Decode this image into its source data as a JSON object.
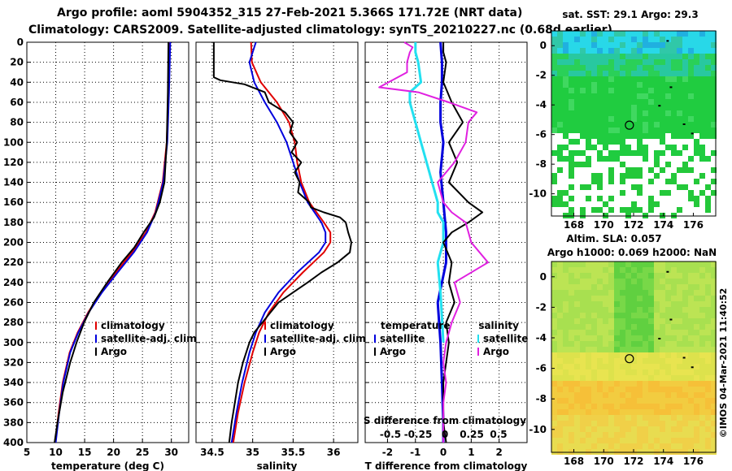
{
  "titles": {
    "line1": "Argo profile: aoml 5904352_315 27-Feb-2021 5.366S 171.72E (NRT data)",
    "line2": "Climatology: CARS2009. Satellite-adjusted climatology: synTS_20210227.nc (0.68d earlier)"
  },
  "colors": {
    "climatology": "#e00000",
    "satellite": "#0000dd",
    "argo": "#000000",
    "sat_salinity": "#22e0f0",
    "argo_salinity": "#e020e0"
  },
  "chart_data": [
    {
      "type": "line",
      "id": "temperature",
      "xlabel": "temperature (deg C)",
      "ylabel": "",
      "xlim": [
        5,
        33
      ],
      "ylim": [
        400,
        0
      ],
      "xticks": [
        5,
        10,
        15,
        20,
        25,
        30
      ],
      "yticks": [
        0,
        20,
        40,
        60,
        80,
        100,
        120,
        140,
        160,
        180,
        200,
        220,
        240,
        260,
        280,
        300,
        320,
        340,
        360,
        380,
        400
      ],
      "legend": [
        "climatology",
        "satellite-adj. clim.",
        "Argo"
      ],
      "series": [
        {
          "name": "climatology",
          "pressure": [
            0,
            50,
            100,
            140,
            170,
            190,
            210,
            230,
            250,
            270,
            290,
            310,
            340,
            370,
            400
          ],
          "values": [
            29.6,
            29.5,
            29.2,
            28.5,
            27.2,
            25.6,
            23.2,
            20.4,
            17.8,
            15.6,
            13.8,
            12.4,
            11.2,
            10.5,
            9.9
          ]
        },
        {
          "name": "satellite-adj. clim.",
          "pressure": [
            0,
            50,
            100,
            140,
            170,
            190,
            210,
            230,
            250,
            270,
            290,
            310,
            340,
            370,
            400
          ],
          "values": [
            29.8,
            29.6,
            29.3,
            28.6,
            27.3,
            25.8,
            23.5,
            20.7,
            18.0,
            15.7,
            13.9,
            12.5,
            11.3,
            10.6,
            10.0
          ]
        },
        {
          "name": "Argo",
          "pressure": [
            0,
            50,
            100,
            140,
            160,
            175,
            190,
            205,
            220,
            240,
            260,
            280,
            300,
            320,
            350,
            380,
            400
          ],
          "values": [
            29.5,
            29.4,
            29.2,
            28.8,
            28.0,
            27.0,
            25.2,
            23.6,
            21.4,
            18.9,
            16.6,
            14.9,
            13.6,
            12.5,
            11.2,
            10.3,
            9.8
          ]
        }
      ]
    },
    {
      "type": "line",
      "id": "salinity",
      "xlabel": "salinity",
      "ylabel": "",
      "xlim": [
        34.3,
        36.3
      ],
      "ylim": [
        400,
        0
      ],
      "xticks": [
        34.5,
        35,
        35.5,
        36
      ],
      "legend": [
        "climatology",
        "satellite-adj. clim.",
        "Argo"
      ],
      "series": [
        {
          "name": "climatology",
          "pressure": [
            0,
            20,
            40,
            60,
            80,
            100,
            120,
            140,
            160,
            180,
            190,
            200,
            210,
            230,
            250,
            270,
            290,
            310,
            340,
            370,
            400
          ],
          "values": [
            34.98,
            34.99,
            35.1,
            35.3,
            35.45,
            35.52,
            35.55,
            35.6,
            35.7,
            35.88,
            35.96,
            35.96,
            35.88,
            35.62,
            35.38,
            35.2,
            35.08,
            35.0,
            34.9,
            34.82,
            34.76
          ]
        },
        {
          "name": "satellite-adj. clim.",
          "pressure": [
            0,
            20,
            40,
            60,
            80,
            100,
            120,
            140,
            160,
            180,
            190,
            200,
            210,
            230,
            250,
            270,
            290,
            310,
            340,
            370,
            400
          ],
          "values": [
            35.04,
            34.96,
            35.02,
            35.15,
            35.3,
            35.42,
            35.5,
            35.58,
            35.68,
            35.85,
            35.9,
            35.9,
            35.82,
            35.55,
            35.32,
            35.15,
            35.04,
            34.96,
            34.87,
            34.8,
            34.74
          ]
        },
        {
          "name": "Argo",
          "pressure": [
            0,
            35,
            38,
            42,
            50,
            60,
            70,
            80,
            90,
            100,
            110,
            120,
            130,
            140,
            150,
            160,
            165,
            170,
            175,
            180,
            190,
            200,
            210,
            220,
            230,
            240,
            250,
            260,
            270,
            280,
            290,
            300,
            320,
            340,
            360,
            380,
            400
          ],
          "values": [
            34.52,
            34.52,
            34.6,
            34.9,
            35.15,
            35.2,
            35.4,
            35.5,
            35.46,
            35.55,
            35.48,
            35.6,
            35.52,
            35.58,
            35.56,
            35.7,
            35.72,
            35.88,
            36.08,
            36.15,
            36.18,
            36.22,
            36.2,
            36.05,
            35.85,
            35.68,
            35.5,
            35.32,
            35.22,
            35.12,
            35.02,
            34.96,
            34.88,
            34.82,
            34.78,
            34.74,
            34.71
          ]
        }
      ]
    },
    {
      "type": "line",
      "id": "differences",
      "xlabel": "T difference from climatology",
      "xlabel_top": "S difference from climatology",
      "xlim": [
        -2.8,
        3.0
      ],
      "ylim": [
        400,
        0
      ],
      "xticks": [
        -2,
        -1,
        0,
        1,
        2
      ],
      "xticks_top": [
        -0.5,
        -0.25,
        0,
        0.25,
        0.5
      ],
      "legend_temperature_title": "temperature",
      "legend_salinity_title": "salinity",
      "legend_temperature": [
        "satellite",
        "Argo"
      ],
      "legend_salinity": [
        "satellite",
        "Argo"
      ],
      "series": [
        {
          "name": "T satellite",
          "pressure": [
            0,
            20,
            40,
            60,
            80,
            100,
            130,
            160,
            190,
            220,
            260,
            300,
            340,
            380,
            400
          ],
          "values": [
            -0.1,
            -0.05,
            -0.05,
            -0.1,
            -0.1,
            0.0,
            -0.1,
            0.0,
            0.1,
            0.1,
            -0.2,
            -0.1,
            -0.05,
            0.0,
            0.0
          ]
        },
        {
          "name": "S satellite (T-axis scaled)",
          "pressure": [
            0,
            10,
            20,
            40,
            50,
            60,
            80,
            100,
            120,
            140,
            160,
            170,
            180,
            200,
            220,
            250,
            300
          ],
          "values": [
            -1.0,
            -1.0,
            -0.9,
            -0.8,
            -1.2,
            -1.2,
            -1.0,
            -0.8,
            -0.6,
            -0.4,
            -0.2,
            -0.2,
            0.0,
            0.0,
            -0.2,
            -0.1,
            0.0
          ]
        },
        {
          "name": "T Argo",
          "pressure": [
            0,
            10,
            20,
            40,
            60,
            80,
            100,
            120,
            140,
            160,
            170,
            180,
            190,
            200,
            220,
            240,
            260,
            280,
            300,
            320,
            340,
            360,
            380,
            400
          ],
          "values": [
            0.0,
            0.0,
            0.1,
            0.0,
            0.3,
            0.7,
            0.2,
            0.5,
            0.2,
            0.9,
            1.4,
            0.9,
            0.3,
            0.0,
            0.3,
            0.2,
            0.4,
            0.1,
            0.2,
            0.1,
            0.0,
            0.0,
            0.0,
            0.1
          ]
        },
        {
          "name": "S Argo (T-axis scaled)",
          "pressure": [
            0,
            5,
            10,
            20,
            30,
            45,
            50,
            60,
            70,
            80,
            100,
            120,
            140,
            160,
            170,
            180,
            200,
            220,
            240,
            260,
            280,
            300,
            320,
            340,
            360,
            380,
            400
          ],
          "values": [
            -1.4,
            -1.1,
            -1.2,
            -1.3,
            -1.3,
            -2.3,
            -0.9,
            0.2,
            1.2,
            0.9,
            0.8,
            0.4,
            -0.2,
            0.0,
            0.3,
            0.8,
            1.0,
            1.6,
            0.4,
            0.6,
            0.3,
            0.1,
            0.0,
            0.1,
            0.0,
            0.0,
            0.0
          ]
        }
      ]
    },
    {
      "type": "heatmap",
      "id": "sst_map",
      "title": "sat. SST: 29.1 Argo: 29.3",
      "xticks": [
        168,
        170,
        172,
        174,
        176
      ],
      "yticks": [
        0,
        -2,
        -4,
        -6,
        -8,
        -10
      ],
      "xlim": [
        166.5,
        177.5
      ],
      "ylim": [
        -11.5,
        1
      ],
      "marker": {
        "lon": 171.72,
        "lat": -5.366
      }
    },
    {
      "type": "heatmap",
      "id": "sla_map",
      "title": "Altim. SLA: 0.057",
      "subtitle": "Argo h1000: 0.069 h2000: NaN",
      "xticks": [
        168,
        170,
        172,
        174,
        176
      ],
      "yticks": [
        0,
        -2,
        -4,
        -6,
        -8,
        -10
      ],
      "xlim": [
        166.5,
        177.5
      ],
      "ylim": [
        -11.5,
        1
      ],
      "marker": {
        "lon": 171.72,
        "lat": -5.366
      }
    }
  ],
  "stamp": "©IMOS 04-Mar-2021 11:40:52"
}
